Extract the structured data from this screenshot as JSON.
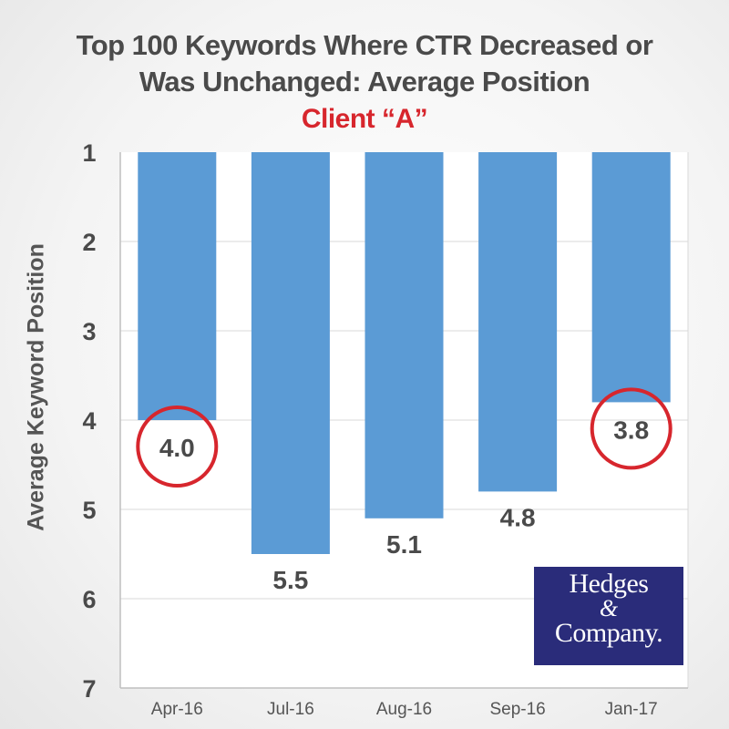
{
  "chart_data": {
    "type": "bar",
    "title": "Top 100 Keywords Where CTR Decreased or",
    "title_line2": "Was Unchanged: Average Position",
    "subtitle": "Client “A”",
    "xlabel": "",
    "ylabel": "Average Keyword Position",
    "categories": [
      "Apr-16",
      "Jul-16",
      "Aug-16",
      "Sep-16",
      "Jan-17"
    ],
    "values": [
      4.0,
      5.5,
      5.1,
      4.8,
      3.8
    ],
    "data_labels": [
      "4.0",
      "5.5",
      "5.1",
      "4.8",
      "3.8"
    ],
    "highlighted": [
      true,
      false,
      false,
      false,
      true
    ],
    "ylim": [
      1,
      7
    ],
    "y_inverted": true,
    "yticks": [
      "1",
      "2",
      "3",
      "4",
      "5",
      "6",
      "7"
    ],
    "grid": true,
    "legend": "none",
    "colors": {
      "bar": "#5b9bd5",
      "highlight": "#d7262d",
      "text": "#4a4a4a",
      "grid": "#d9d9d9"
    }
  },
  "logo": {
    "line1": "Hedges",
    "line2": "&",
    "line3": "Company."
  }
}
